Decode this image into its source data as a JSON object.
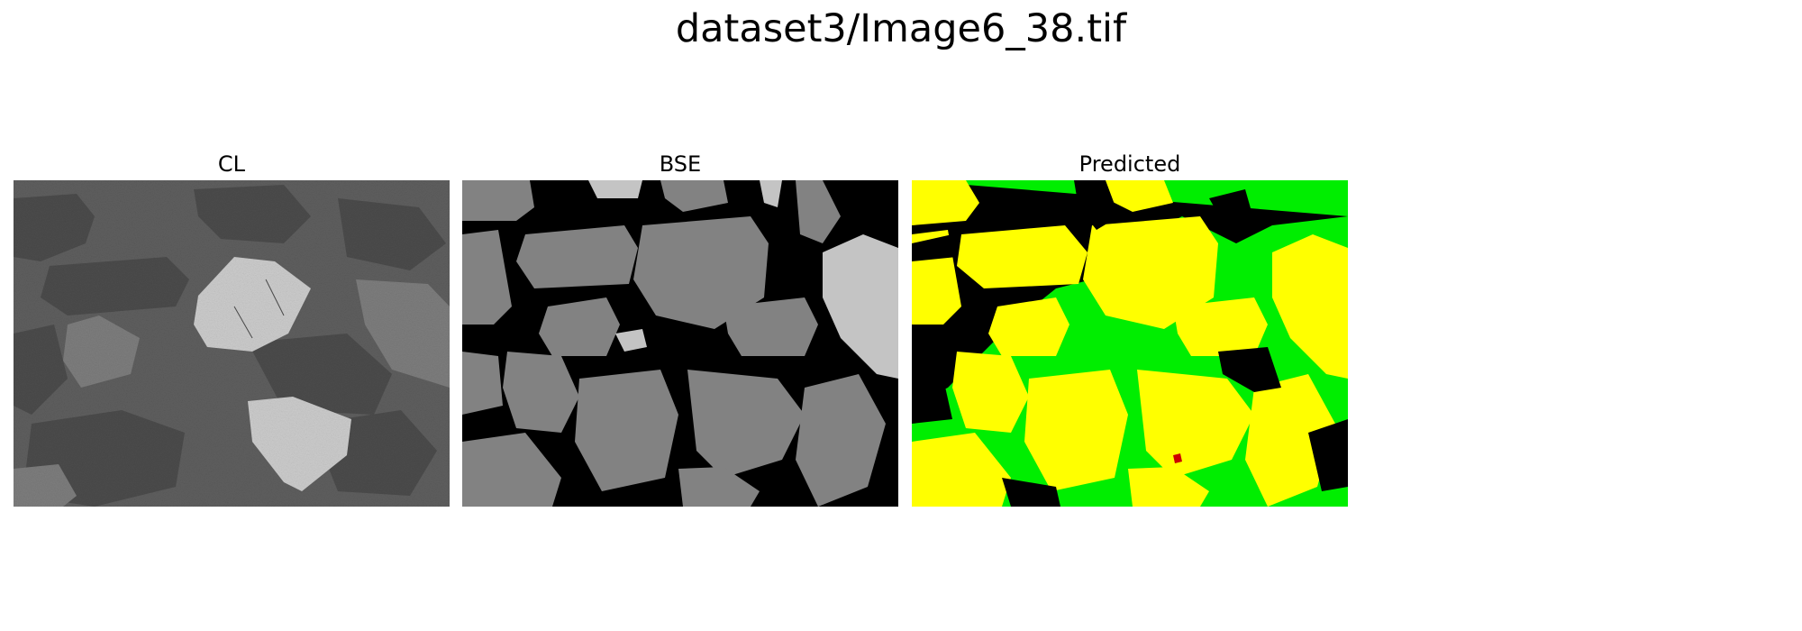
{
  "figure": {
    "title": "dataset3/Image6_38.tif"
  },
  "panels": [
    {
      "title": "CL",
      "kind": "cathodoluminescence-grayscale"
    },
    {
      "title": "BSE",
      "kind": "backscattered-electron-grayscale"
    },
    {
      "title": "Predicted",
      "kind": "segmentation-map"
    }
  ],
  "colors": {
    "cl_background": "#5f5f5f",
    "cl_grain_dark": "#4c4c4c",
    "cl_grain_mid": "#7e7e7e",
    "cl_grain_bright": "#cdcdcd",
    "bse_pore": "#000000",
    "bse_grain": "#828282",
    "bse_bright": "#c4c4c4",
    "pred_background": "#000000",
    "pred_class_grain": "#ffff00",
    "pred_class_matrix": "#00ee00",
    "pred_class_minor": "#cc0000"
  }
}
